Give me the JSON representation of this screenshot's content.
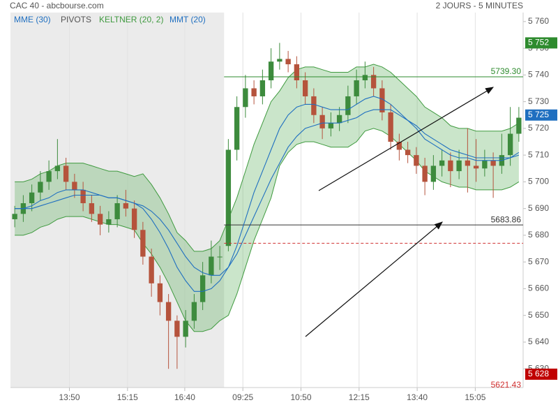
{
  "chart_data": {
    "type": "candlestick",
    "title": "CAC 40 - abcbourse.com",
    "subtitle": "2 JOURS - 5 MINUTES",
    "xlim": [
      -0.5,
      59.5
    ],
    "shade_x": [
      -0.5,
      24.5
    ],
    "xticks": [
      {
        "value": 6.4,
        "label": "13:50"
      },
      {
        "value": 13.2,
        "label": "15:15"
      },
      {
        "value": 19.9,
        "label": "16:40"
      },
      {
        "value": 26.7,
        "label": "09:25"
      },
      {
        "value": 33.5,
        "label": "10:50"
      },
      {
        "value": 40.3,
        "label": "12:15"
      },
      {
        "value": 47.1,
        "label": "13:40"
      },
      {
        "value": 53.9,
        "label": "15:05"
      }
    ],
    "ylim": [
      5623,
      5761
    ],
    "yticks": [
      {
        "value": 5630,
        "label": "5 630"
      },
      {
        "value": 5640,
        "label": "5 640"
      },
      {
        "value": 5650,
        "label": "5 650"
      },
      {
        "value": 5660,
        "label": "5 660"
      },
      {
        "value": 5670,
        "label": "5 670"
      },
      {
        "value": 5680,
        "label": "5 680"
      },
      {
        "value": 5690,
        "label": "5 690"
      },
      {
        "value": 5700,
        "label": "5 700"
      },
      {
        "value": 5710,
        "label": "5 710"
      },
      {
        "value": 5720,
        "label": "5 720"
      },
      {
        "value": 5730,
        "label": "5 730"
      },
      {
        "value": 5740,
        "label": "5 740"
      },
      {
        "value": 5750,
        "label": "5 750"
      },
      {
        "value": 5760,
        "label": "5 760"
      }
    ],
    "grid": "x",
    "up_color": "#3d8b3d",
    "down_color": "#b5533c",
    "candles": {
      "open": [
        5686,
        5688,
        5692,
        5696,
        5700,
        5704,
        5706,
        5700,
        5697,
        5692,
        5688,
        5684,
        5686,
        5692,
        5690,
        5682,
        5672,
        5662,
        5655,
        5648,
        5642,
        5648,
        5655,
        5665,
        5672,
        5676,
        5712,
        5728,
        5735,
        5732,
        5738,
        5745,
        5746,
        5744,
        5738,
        5732,
        5725,
        5720,
        5722,
        5725,
        5732,
        5738,
        5740,
        5735,
        5726,
        5715,
        5712,
        5710,
        5706,
        5700,
        5706,
        5708,
        5704,
        5708,
        5706,
        5705,
        5708,
        5706,
        5710,
        5718
      ],
      "high": [
        5691,
        5695,
        5699,
        5704,
        5708,
        5716,
        5709,
        5703,
        5700,
        5695,
        5691,
        5689,
        5695,
        5697,
        5693,
        5685,
        5675,
        5665,
        5658,
        5650,
        5652,
        5658,
        5670,
        5678,
        5676,
        5716,
        5732,
        5740,
        5738,
        5742,
        5750,
        5752,
        5749,
        5747,
        5741,
        5735,
        5728,
        5726,
        5728,
        5736,
        5742,
        5745,
        5743,
        5738,
        5729,
        5718,
        5715,
        5713,
        5709,
        5710,
        5712,
        5711,
        5712,
        5720,
        5716,
        5712,
        5711,
        5718,
        5728,
        5728
      ],
      "low": [
        5683,
        5685,
        5689,
        5693,
        5697,
        5701,
        5697,
        5694,
        5689,
        5685,
        5680,
        5681,
        5683,
        5687,
        5679,
        5669,
        5657,
        5650,
        5630,
        5630,
        5638,
        5645,
        5652,
        5662,
        5667,
        5674,
        5708,
        5724,
        5729,
        5729,
        5735,
        5742,
        5741,
        5735,
        5729,
        5722,
        5716,
        5717,
        5719,
        5722,
        5729,
        5735,
        5732,
        5723,
        5712,
        5708,
        5707,
        5703,
        5695,
        5697,
        5702,
        5698,
        5701,
        5696,
        5700,
        5702,
        5694,
        5703,
        5706,
        5715
      ],
      "close": [
        5688,
        5692,
        5696,
        5700,
        5704,
        5706,
        5700,
        5697,
        5692,
        5688,
        5684,
        5686,
        5692,
        5690,
        5682,
        5672,
        5662,
        5655,
        5648,
        5642,
        5648,
        5655,
        5665,
        5672,
        5672,
        5712,
        5728,
        5735,
        5732,
        5738,
        5745,
        5746,
        5744,
        5738,
        5732,
        5725,
        5720,
        5722,
        5725,
        5732,
        5738,
        5740,
        5735,
        5726,
        5715,
        5712,
        5710,
        5706,
        5700,
        5706,
        5708,
        5704,
        5708,
        5706,
        5705,
        5708,
        5706,
        5710,
        5718,
        5724
      ]
    },
    "series": [
      {
        "name": "MME (30)",
        "color": "#1f6fc0",
        "values": [
          5690,
          5690,
          5690,
          5691,
          5692,
          5693,
          5694,
          5695,
          5695,
          5695,
          5695,
          5694,
          5694,
          5693,
          5692,
          5691,
          5689,
          5686,
          5682,
          5677,
          5672,
          5668,
          5666,
          5665,
          5665,
          5668,
          5673,
          5680,
          5687,
          5694,
          5701,
          5707,
          5713,
          5717,
          5720,
          5721,
          5722,
          5722,
          5722,
          5723,
          5724,
          5726,
          5727,
          5727,
          5727,
          5725,
          5723,
          5721,
          5718,
          5716,
          5714,
          5712,
          5711,
          5710,
          5709,
          5709,
          5709,
          5709,
          5709,
          5710
        ]
      },
      {
        "name": "PIVOTS",
        "color": "#555555",
        "levels": [
          {
            "value": 5739.3,
            "label": "5739.30",
            "color": "#2e8b2e"
          },
          {
            "value": 5683.86,
            "label": "5683.86",
            "color": "#333333"
          },
          {
            "value": 5677,
            "color": "#d03030",
            "dashed": true
          },
          {
            "value": 5621.43,
            "label": "5621.43",
            "color": "#d03030"
          }
        ]
      },
      {
        "name": "KELTNER (20, 2)",
        "color": "#3f9a3f",
        "upper": [
          5700,
          5700,
          5701,
          5703,
          5704,
          5706,
          5707,
          5707,
          5707,
          5706,
          5705,
          5704,
          5704,
          5703,
          5702,
          5703,
          5699,
          5694,
          5688,
          5681,
          5678,
          5674,
          5674,
          5675,
          5678,
          5686,
          5694,
          5704,
          5714,
          5722,
          5730,
          5734,
          5739,
          5742,
          5743,
          5743,
          5742,
          5741,
          5741,
          5741,
          5743,
          5743,
          5744,
          5743,
          5741,
          5738,
          5735,
          5732,
          5728,
          5726,
          5724,
          5721,
          5720,
          5720,
          5719,
          5719,
          5719,
          5719,
          5720,
          5722
        ],
        "lower": [
          5680,
          5680,
          5681,
          5683,
          5684,
          5686,
          5687,
          5687,
          5687,
          5686,
          5685,
          5684,
          5684,
          5683,
          5682,
          5677,
          5673,
          5668,
          5662,
          5655,
          5648,
          5644,
          5644,
          5645,
          5648,
          5650,
          5658,
          5668,
          5678,
          5686,
          5694,
          5706,
          5711,
          5714,
          5715,
          5715,
          5714,
          5713,
          5713,
          5713,
          5715,
          5719,
          5720,
          5719,
          5717,
          5714,
          5711,
          5708,
          5704,
          5702,
          5700,
          5699,
          5698,
          5698,
          5697,
          5697,
          5697,
          5697,
          5698,
          5700
        ]
      },
      {
        "name": "MMT (20)",
        "color": "#1f6fc0",
        "values": [
          5690,
          5690,
          5691,
          5693,
          5694,
          5696,
          5697,
          5697,
          5697,
          5696,
          5695,
          5694,
          5694,
          5693,
          5692,
          5690,
          5686,
          5681,
          5675,
          5668,
          5663,
          5659,
          5659,
          5660,
          5663,
          5668,
          5676,
          5686,
          5696,
          5704,
          5712,
          5720,
          5725,
          5728,
          5729,
          5729,
          5728,
          5727,
          5727,
          5727,
          5729,
          5731,
          5732,
          5731,
          5729,
          5726,
          5723,
          5720,
          5716,
          5714,
          5712,
          5710,
          5709,
          5709,
          5708,
          5708,
          5708,
          5708,
          5709,
          5711
        ]
      }
    ],
    "price_tags": [
      {
        "value": 5752,
        "label": "5 752",
        "color": "#2e8b2e"
      },
      {
        "value": 5725,
        "label": "5 725",
        "color": "#1f6fc0"
      },
      {
        "value": 5628,
        "label": "5 628",
        "color": "#c00000"
      }
    ]
  }
}
